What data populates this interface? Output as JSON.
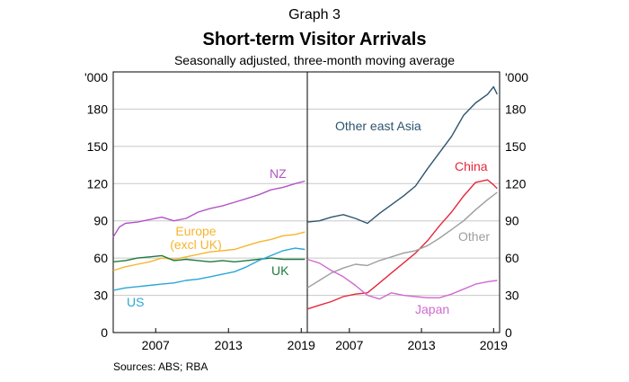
{
  "header": {
    "graph_label": "Graph 3",
    "title": "Short-term Visitor Arrivals",
    "subtitle": "Seasonally adjusted, three-month moving average"
  },
  "footer": {
    "sources": "Sources:   ABS; RBA"
  },
  "chart_data": {
    "type": "line",
    "y_unit": "'000",
    "ylim": [
      0,
      210
    ],
    "y_ticks": [
      "0",
      "30",
      "60",
      "90",
      "120",
      "150",
      "180"
    ],
    "grid": "horizontal",
    "panels": [
      {
        "x_ticks": [
          "2007",
          "2013",
          "2019"
        ],
        "series": [
          {
            "name": "NZ",
            "color": "#b155c6",
            "label_lines": [
              "NZ"
            ],
            "x": [
              2004,
              2004.5,
              2005,
              2006,
              2007,
              2008,
              2009,
              2010,
              2011,
              2012,
              2013,
              2014,
              2015,
              2016,
              2017,
              2018,
              2019,
              2019.8
            ],
            "values": [
              77,
              85,
              88,
              89,
              91,
              93,
              90,
              92,
              97,
              100,
              102,
              105,
              108,
              111,
              115,
              117,
              120,
              122
            ]
          },
          {
            "name": "Europe (excl UK)",
            "color": "#f5b52e",
            "label_lines": [
              "Europe",
              "(excl UK)"
            ],
            "x": [
              2004,
              2005,
              2006,
              2007,
              2008,
              2009,
              2010,
              2011,
              2012,
              2013,
              2014,
              2015,
              2016,
              2017,
              2018,
              2019,
              2019.8
            ],
            "values": [
              50,
              53,
              55,
              57,
              60,
              59,
              61,
              63,
              65,
              66,
              67,
              70,
              73,
              75,
              78,
              79,
              81
            ]
          },
          {
            "name": "UK",
            "color": "#1f7a3c",
            "label_lines": [
              "UK"
            ],
            "x": [
              2004,
              2005,
              2006,
              2007,
              2008,
              2009,
              2010,
              2011,
              2012,
              2013,
              2014,
              2015,
              2016,
              2017,
              2018,
              2019,
              2019.8
            ],
            "values": [
              57,
              58,
              60,
              61,
              62,
              58,
              59,
              58,
              57,
              58,
              57,
              58,
              59,
              60,
              59,
              59,
              59
            ]
          },
          {
            "name": "US",
            "color": "#2ba6d8",
            "label_lines": [
              "US"
            ],
            "x": [
              2004,
              2005,
              2006,
              2007,
              2008,
              2009,
              2010,
              2011,
              2012,
              2013,
              2014,
              2015,
              2016,
              2017,
              2018,
              2019,
              2019.8
            ],
            "values": [
              34,
              36,
              37,
              38,
              39,
              40,
              42,
              43,
              45,
              47,
              49,
              53,
              58,
              62,
              66,
              68,
              67
            ]
          }
        ]
      },
      {
        "x_ticks": [
          "2007",
          "2013",
          "2019"
        ],
        "series": [
          {
            "name": "Other east Asia",
            "color": "#2e546e",
            "label_lines": [
              "Other east Asia"
            ],
            "x": [
              2004,
              2005,
              2006,
              2007,
              2008,
              2009,
              2010,
              2011,
              2012,
              2013,
              2014,
              2015,
              2016,
              2017,
              2018,
              2019,
              2019.5,
              2019.8
            ],
            "values": [
              89,
              90,
              93,
              95,
              92,
              88,
              96,
              103,
              110,
              118,
              132,
              145,
              158,
              175,
              185,
              192,
              198,
              192
            ]
          },
          {
            "name": "China",
            "color": "#e5283c",
            "label_lines": [
              "China"
            ],
            "x": [
              2004,
              2005,
              2006,
              2007,
              2008,
              2009,
              2010,
              2011,
              2012,
              2013,
              2014,
              2015,
              2016,
              2017,
              2018,
              2019,
              2019.5,
              2019.8
            ],
            "values": [
              19,
              22,
              25,
              29,
              31,
              32,
              40,
              48,
              56,
              64,
              74,
              86,
              97,
              110,
              121,
              123,
              119,
              116
            ]
          },
          {
            "name": "Other",
            "color": "#9e9e9e",
            "label_lines": [
              "Other"
            ],
            "x": [
              2004,
              2005,
              2006,
              2007,
              2008,
              2009,
              2010,
              2011,
              2012,
              2013,
              2014,
              2015,
              2016,
              2017,
              2018,
              2019,
              2019.8
            ],
            "values": [
              36,
              42,
              48,
              52,
              55,
              54,
              58,
              61,
              64,
              66,
              70,
              76,
              83,
              90,
              99,
              107,
              113
            ]
          },
          {
            "name": "Japan",
            "color": "#d16ad0",
            "label_lines": [
              "Japan"
            ],
            "x": [
              2004,
              2005,
              2006,
              2007,
              2008,
              2009,
              2010,
              2011,
              2012,
              2013,
              2014,
              2015,
              2016,
              2017,
              2018,
              2019,
              2019.8
            ],
            "values": [
              59,
              56,
              50,
              45,
              38,
              30,
              27,
              32,
              30,
              29,
              28,
              28,
              31,
              35,
              39,
              41,
              42
            ]
          }
        ]
      }
    ]
  }
}
